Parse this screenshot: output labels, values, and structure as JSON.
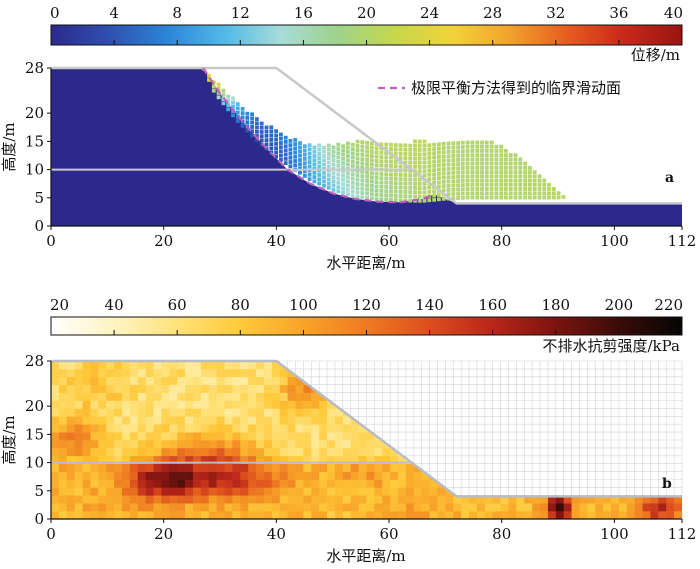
{
  "chart_data": [
    {
      "type": "scatter",
      "panel_label": "a",
      "xlabel": "水平距离/m",
      "ylabel": "高度/m",
      "xlim": [
        0,
        112
      ],
      "ylim": [
        0,
        28
      ],
      "xticks": [
        0,
        20,
        40,
        60,
        80,
        100,
        112
      ],
      "yticks": [
        0,
        5,
        10,
        15,
        20,
        28
      ],
      "colorbar": {
        "label": "位移/m",
        "range": [
          0,
          40
        ],
        "ticks": [
          0,
          4,
          8,
          12,
          16,
          20,
          24,
          28,
          32,
          36,
          40
        ],
        "colors": [
          "#2b2a8c",
          "#2f4fb0",
          "#2b84d8",
          "#4fb8e8",
          "#a6dcd8",
          "#9fd38a",
          "#c5d84a",
          "#f2d23a",
          "#f2a22a",
          "#e85c1e",
          "#c8281a",
          "#9a1410"
        ]
      },
      "background_value": 0,
      "original_slope": {
        "x": [
          0,
          40,
          72,
          112
        ],
        "y": [
          28,
          28,
          4,
          4
        ]
      },
      "layer_boundary_y": 10,
      "layer_boundary_x_end": 64,
      "legend": [
        {
          "name": "极限平衡方法得到的临界滑动面",
          "color": "#c060b8",
          "style": "dashed"
        }
      ],
      "critical_slip_surface": {
        "x": [
          27,
          30,
          34,
          38,
          42,
          46,
          50,
          54,
          58,
          62,
          66,
          68
        ],
        "y": [
          28,
          23.5,
          18.5,
          14,
          10,
          7.5,
          5.8,
          4.8,
          4.3,
          4.2,
          4.8,
          5.6
        ]
      },
      "sliding_mass": {
        "x": [
          27,
          29,
          31,
          33,
          35,
          37,
          40,
          43,
          46,
          50,
          54,
          58,
          62,
          66,
          70,
          74,
          78,
          82,
          86,
          90,
          92
        ],
        "y_top": [
          28,
          26,
          24,
          22,
          20.5,
          19,
          17,
          15.5,
          14.5,
          14.5,
          15,
          15,
          15,
          15,
          15,
          15,
          15,
          13,
          9.5,
          6.5,
          5
        ],
        "y_bottom": [
          28,
          23.5,
          21,
          18.5,
          16.5,
          14.5,
          12,
          10,
          8,
          6.2,
          5,
          4.5,
          4.3,
          4.2,
          4.6,
          4.8,
          4.8,
          4.8,
          4.8,
          4.8,
          5
        ],
        "value_top": [
          28,
          26,
          20,
          12,
          8,
          6,
          6,
          8,
          12,
          18,
          20,
          21,
          21,
          21,
          20,
          20,
          20,
          20,
          20,
          21,
          22
        ],
        "value_bottom": [
          24,
          18,
          10,
          6,
          4,
          3,
          4,
          6,
          9,
          12,
          15,
          18,
          19,
          20,
          20,
          20,
          20,
          20,
          20,
          20,
          21
        ]
      }
    },
    {
      "type": "heatmap",
      "panel_label": "b",
      "xlabel": "水平距离/m",
      "ylabel": "高度/m",
      "xlim": [
        0,
        112
      ],
      "ylim": [
        0,
        28
      ],
      "xticks": [
        0,
        20,
        40,
        60,
        80,
        100,
        112
      ],
      "yticks": [
        0,
        5,
        10,
        15,
        20,
        28
      ],
      "colorbar": {
        "label": "不排水抗剪强度/kPa",
        "range": [
          20,
          220
        ],
        "ticks": [
          20,
          40,
          60,
          80,
          100,
          120,
          140,
          160,
          180,
          200,
          220
        ],
        "colors": [
          "#ffffff",
          "#fff3c2",
          "#ffe27a",
          "#ffc93a",
          "#f8a428",
          "#ee7a22",
          "#dc4e1e",
          "#b8261a",
          "#7c1410",
          "#3a0c08",
          "#050505"
        ]
      },
      "slope_profile": {
        "x": [
          0,
          40,
          72,
          112
        ],
        "y": [
          28,
          28,
          4,
          4
        ]
      },
      "layer_boundary_y": 10,
      "layer_boundary_x_end": 64,
      "grid_cell_m": 1.4,
      "field_model": {
        "upper_layer_base": 62,
        "lower_layer_base": 88,
        "hotspots": [
          {
            "x": 20,
            "y": 7,
            "value": 178,
            "sx": 4.5,
            "sy": 2.5
          },
          {
            "x": 32,
            "y": 7,
            "value": 155,
            "sx": 6,
            "sy": 2.5
          },
          {
            "x": 4,
            "y": 14,
            "value": 118,
            "sx": 3.5,
            "sy": 3
          },
          {
            "x": 28,
            "y": 12,
            "value": 115,
            "sx": 6,
            "sy": 2.5
          },
          {
            "x": 45,
            "y": 23,
            "value": 112,
            "sx": 3,
            "sy": 3
          },
          {
            "x": 90,
            "y": 2,
            "value": 212,
            "sx": 1.6,
            "sy": 1.6
          },
          {
            "x": 108,
            "y": 2,
            "value": 158,
            "sx": 3,
            "sy": 2
          },
          {
            "x": 12,
            "y": 3,
            "value": 100,
            "sx": 5,
            "sy": 2
          },
          {
            "x": 66,
            "y": 2,
            "value": 98,
            "sx": 4,
            "sy": 2
          },
          {
            "x": 55,
            "y": 8,
            "value": 105,
            "sx": 3.5,
            "sy": 2
          },
          {
            "x": 8,
            "y": 24,
            "value": 82,
            "sx": 4,
            "sy": 3
          }
        ]
      }
    }
  ]
}
